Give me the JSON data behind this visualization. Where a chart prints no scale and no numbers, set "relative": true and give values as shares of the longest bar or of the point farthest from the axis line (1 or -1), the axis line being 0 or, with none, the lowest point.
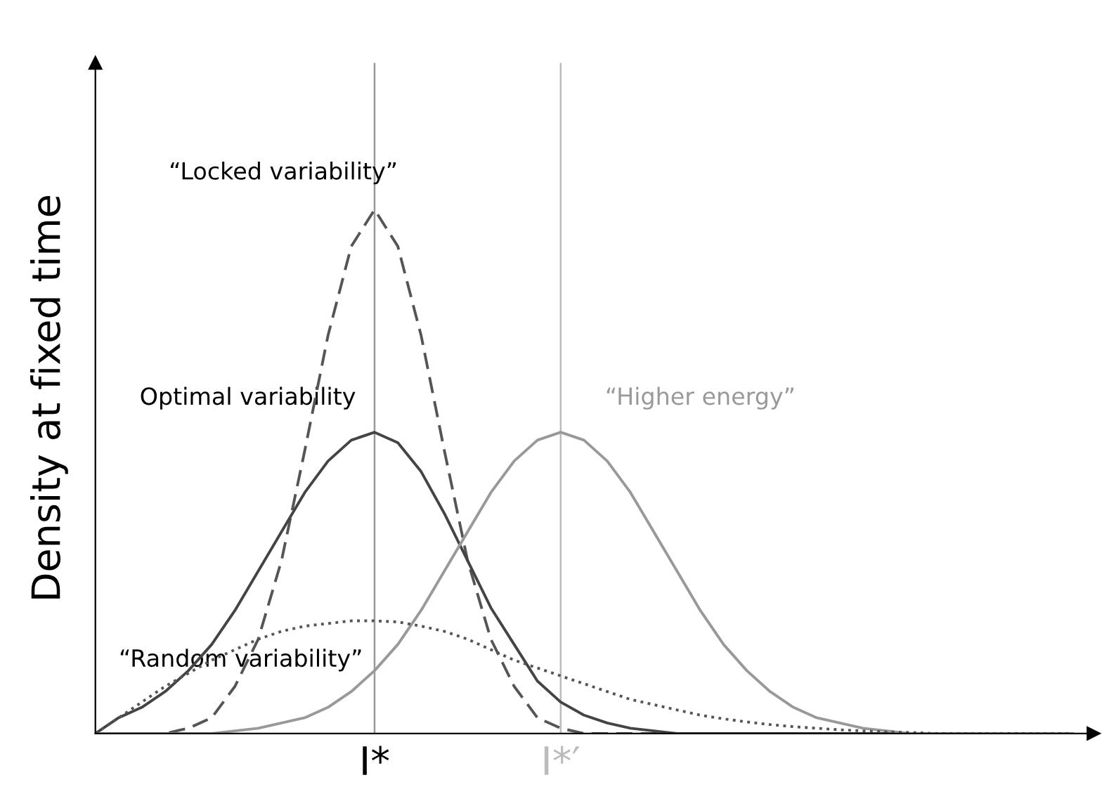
{
  "chart_data": {
    "type": "line",
    "relative": true,
    "ylabel": "Density at fixed time",
    "legend": false,
    "grid": false,
    "categories": [
      null,
      null,
      null,
      null,
      null,
      null,
      null,
      null,
      null,
      null,
      null,
      null,
      "I*",
      null,
      null,
      null,
      null,
      null,
      null,
      null,
      "I*′",
      null,
      null,
      null,
      null,
      null,
      null,
      null,
      null,
      null,
      null,
      null,
      null,
      null,
      null,
      null,
      null,
      null,
      null,
      null,
      null,
      null,
      null
    ],
    "ref_lines": [
      {
        "axis": "x",
        "value": "I*",
        "color": "#999999"
      },
      {
        "axis": "x",
        "value": "I*′",
        "color": "#bbbbbb"
      }
    ],
    "series": [
      {
        "name": "“Locked variability”",
        "color": "#555555",
        "line_style": "dashed",
        "values": [
          0,
          0,
          0,
          0,
          0.01,
          0.03,
          0.09,
          0.18,
          0.33,
          0.54,
          0.76,
          0.93,
          1,
          0.93,
          0.76,
          0.54,
          0.33,
          0.18,
          0.09,
          0.03,
          0.01,
          0,
          0,
          0,
          0,
          0,
          0,
          0,
          0,
          0,
          0,
          0,
          0,
          0,
          0,
          0,
          0,
          0,
          0,
          0,
          0,
          0,
          0
        ]
      },
      {
        "name": "Optimal variability",
        "color": "#444444",
        "line_style": "solid",
        "values": [
          0,
          0.03,
          0.05,
          0.08,
          0.12,
          0.17,
          0.235,
          0.31,
          0.385,
          0.46,
          0.52,
          0.56,
          0.575,
          0.555,
          0.5,
          0.42,
          0.33,
          0.24,
          0.17,
          0.1,
          0.06,
          0.035,
          0.02,
          0.01,
          0.005,
          0,
          0,
          0,
          0,
          0,
          0,
          0,
          0,
          0,
          0,
          0,
          0,
          0,
          0,
          0,
          0,
          0,
          0
        ]
      },
      {
        "name": "“Higher energy”",
        "color": "#999999",
        "line_style": "solid",
        "values": [
          0,
          0,
          0,
          0,
          0,
          0,
          0.005,
          0.01,
          0.02,
          0.03,
          0.05,
          0.08,
          0.12,
          0.17,
          0.235,
          0.31,
          0.385,
          0.46,
          0.52,
          0.56,
          0.575,
          0.56,
          0.52,
          0.46,
          0.385,
          0.31,
          0.235,
          0.17,
          0.12,
          0.08,
          0.05,
          0.03,
          0.02,
          0.01,
          0.005,
          0,
          0,
          0,
          0,
          0,
          0,
          0,
          0
        ]
      },
      {
        "name": "“Random variability”",
        "color": "#555555",
        "line_style": "dotted",
        "values": [
          0,
          0.03,
          0.06,
          0.09,
          0.115,
          0.14,
          0.16,
          0.18,
          0.195,
          0.205,
          0.21,
          0.215,
          0.215,
          0.213,
          0.205,
          0.195,
          0.18,
          0.16,
          0.14,
          0.125,
          0.11,
          0.095,
          0.08,
          0.065,
          0.055,
          0.045,
          0.035,
          0.028,
          0.022,
          0.017,
          0.013,
          0.01,
          0.007,
          0.005,
          0.003,
          0.002,
          0,
          0,
          0,
          0,
          0,
          0,
          0
        ]
      }
    ]
  }
}
